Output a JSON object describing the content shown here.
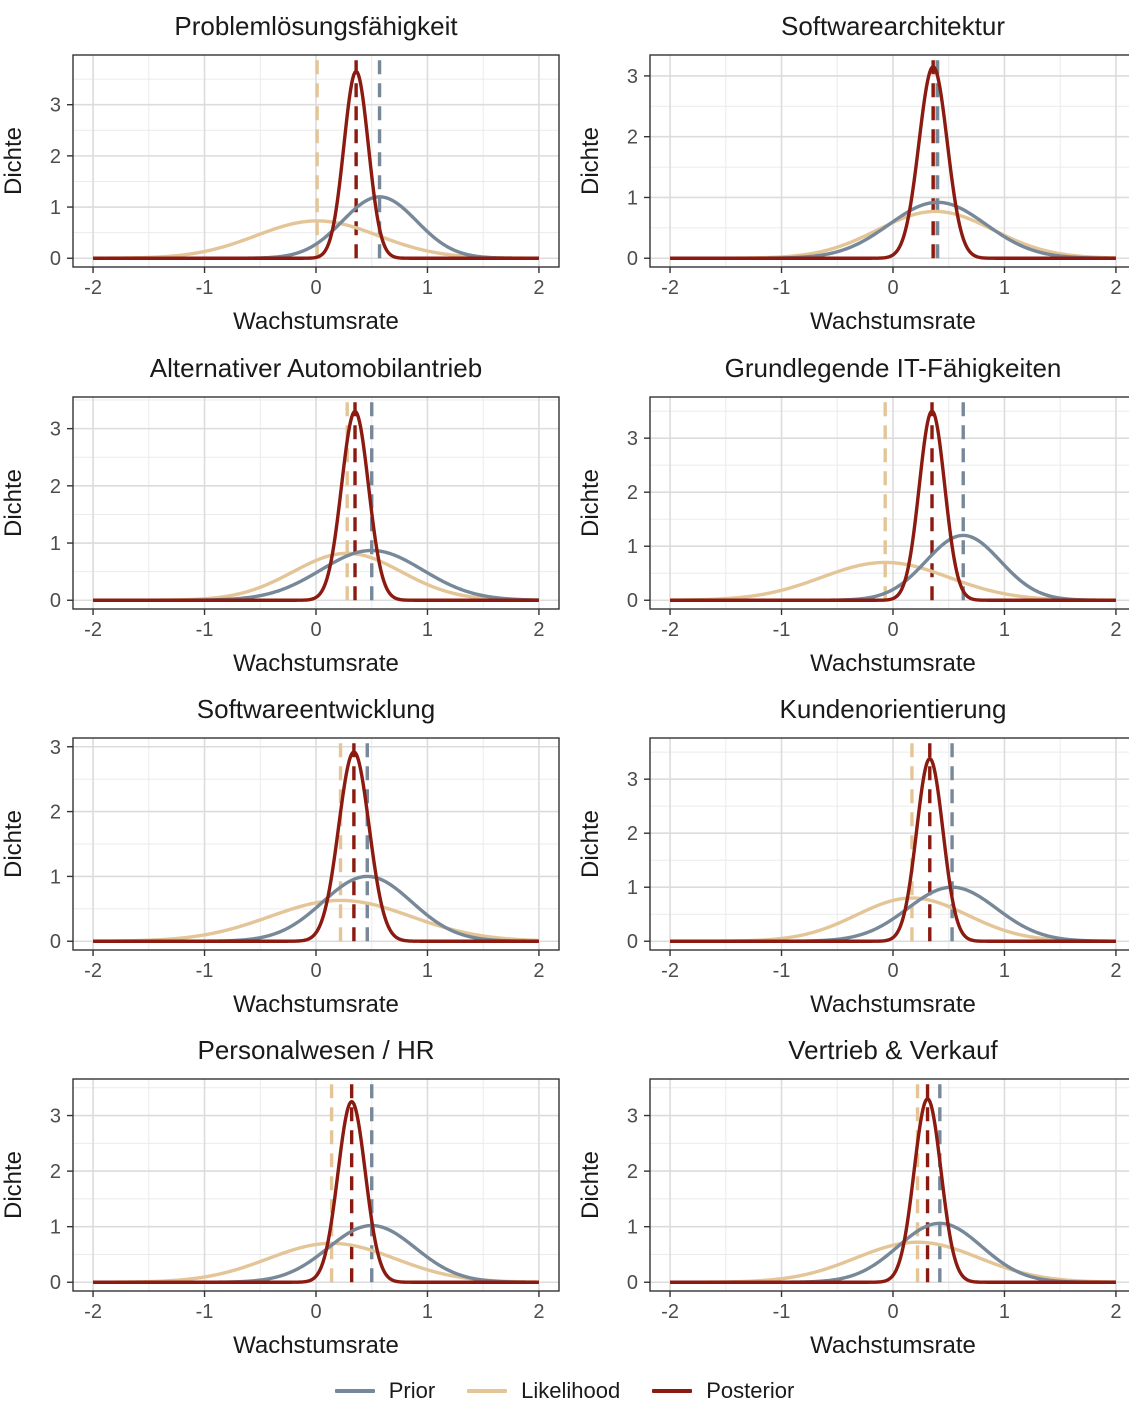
{
  "chart_data": {
    "type": "line",
    "x_range": [
      -2,
      2
    ],
    "x_ticks": [
      "-2",
      "-1",
      "0",
      "1",
      "2"
    ],
    "xlabel": "Wachstumsrate",
    "ylabel": "Dichte",
    "grid": true,
    "legend_position": "bottom",
    "colors": {
      "prior": "#778899",
      "likelihood": "#E3C597",
      "posterior": "#8B1A10"
    },
    "legend": [
      {
        "key": "prior",
        "name": "Prior"
      },
      {
        "key": "likelihood",
        "name": "Likelihood"
      },
      {
        "key": "posterior",
        "name": "Posterior"
      }
    ],
    "panels": [
      {
        "title": "Problemlösungsfähigkeit",
        "ylim": [
          0,
          3.8
        ],
        "yticks": [
          "0",
          "1",
          "2",
          "3"
        ],
        "prior": {
          "mean": 0.57,
          "peak": 1.2
        },
        "likelihood": {
          "mean": 0.01,
          "peak": 0.73
        },
        "posterior": {
          "mean": 0.36,
          "peak": 3.65
        }
      },
      {
        "title": "Softwarearchitektur",
        "ylim": [
          0,
          3.2
        ],
        "yticks": [
          "0",
          "1",
          "2",
          "3"
        ],
        "prior": {
          "mean": 0.4,
          "peak": 0.92
        },
        "likelihood": {
          "mean": 0.38,
          "peak": 0.77
        },
        "posterior": {
          "mean": 0.36,
          "peak": 3.15
        }
      },
      {
        "title": "Alternativer Automobilantrieb",
        "ylim": [
          0,
          3.4
        ],
        "yticks": [
          "0",
          "1",
          "2",
          "3"
        ],
        "prior": {
          "mean": 0.5,
          "peak": 0.87
        },
        "likelihood": {
          "mean": 0.28,
          "peak": 0.82
        },
        "posterior": {
          "mean": 0.35,
          "peak": 3.3
        }
      },
      {
        "title": "Grundlegende IT-Fähigkeiten",
        "ylim": [
          0,
          3.6
        ],
        "yticks": [
          "0",
          "1",
          "2",
          "3"
        ],
        "prior": {
          "mean": 0.63,
          "peak": 1.2
        },
        "likelihood": {
          "mean": -0.07,
          "peak": 0.7
        },
        "posterior": {
          "mean": 0.35,
          "peak": 3.5
        }
      },
      {
        "title": "Softwareentwicklung",
        "ylim": [
          0,
          3.0
        ],
        "yticks": [
          "0",
          "1",
          "2",
          "3"
        ],
        "prior": {
          "mean": 0.46,
          "peak": 1.0
        },
        "likelihood": {
          "mean": 0.22,
          "peak": 0.63
        },
        "posterior": {
          "mean": 0.34,
          "peak": 2.92
        }
      },
      {
        "title": "Kundenorientierung",
        "ylim": [
          0,
          3.6
        ],
        "yticks": [
          "0",
          "1",
          "2",
          "3"
        ],
        "prior": {
          "mean": 0.53,
          "peak": 1.0
        },
        "likelihood": {
          "mean": 0.17,
          "peak": 0.8
        },
        "posterior": {
          "mean": 0.33,
          "peak": 3.38
        }
      },
      {
        "title": "Personalwesen / HR",
        "ylim": [
          0,
          3.5
        ],
        "yticks": [
          "0",
          "1",
          "2",
          "3"
        ],
        "prior": {
          "mean": 0.5,
          "peak": 1.02
        },
        "likelihood": {
          "mean": 0.14,
          "peak": 0.7
        },
        "posterior": {
          "mean": 0.32,
          "peak": 3.25
        }
      },
      {
        "title": "Vertrieb & Verkauf",
        "ylim": [
          0,
          3.5
        ],
        "yticks": [
          "0",
          "1",
          "2",
          "3"
        ],
        "prior": {
          "mean": 0.42,
          "peak": 1.06
        },
        "likelihood": {
          "mean": 0.22,
          "peak": 0.72
        },
        "posterior": {
          "mean": 0.31,
          "peak": 3.3
        }
      }
    ]
  }
}
